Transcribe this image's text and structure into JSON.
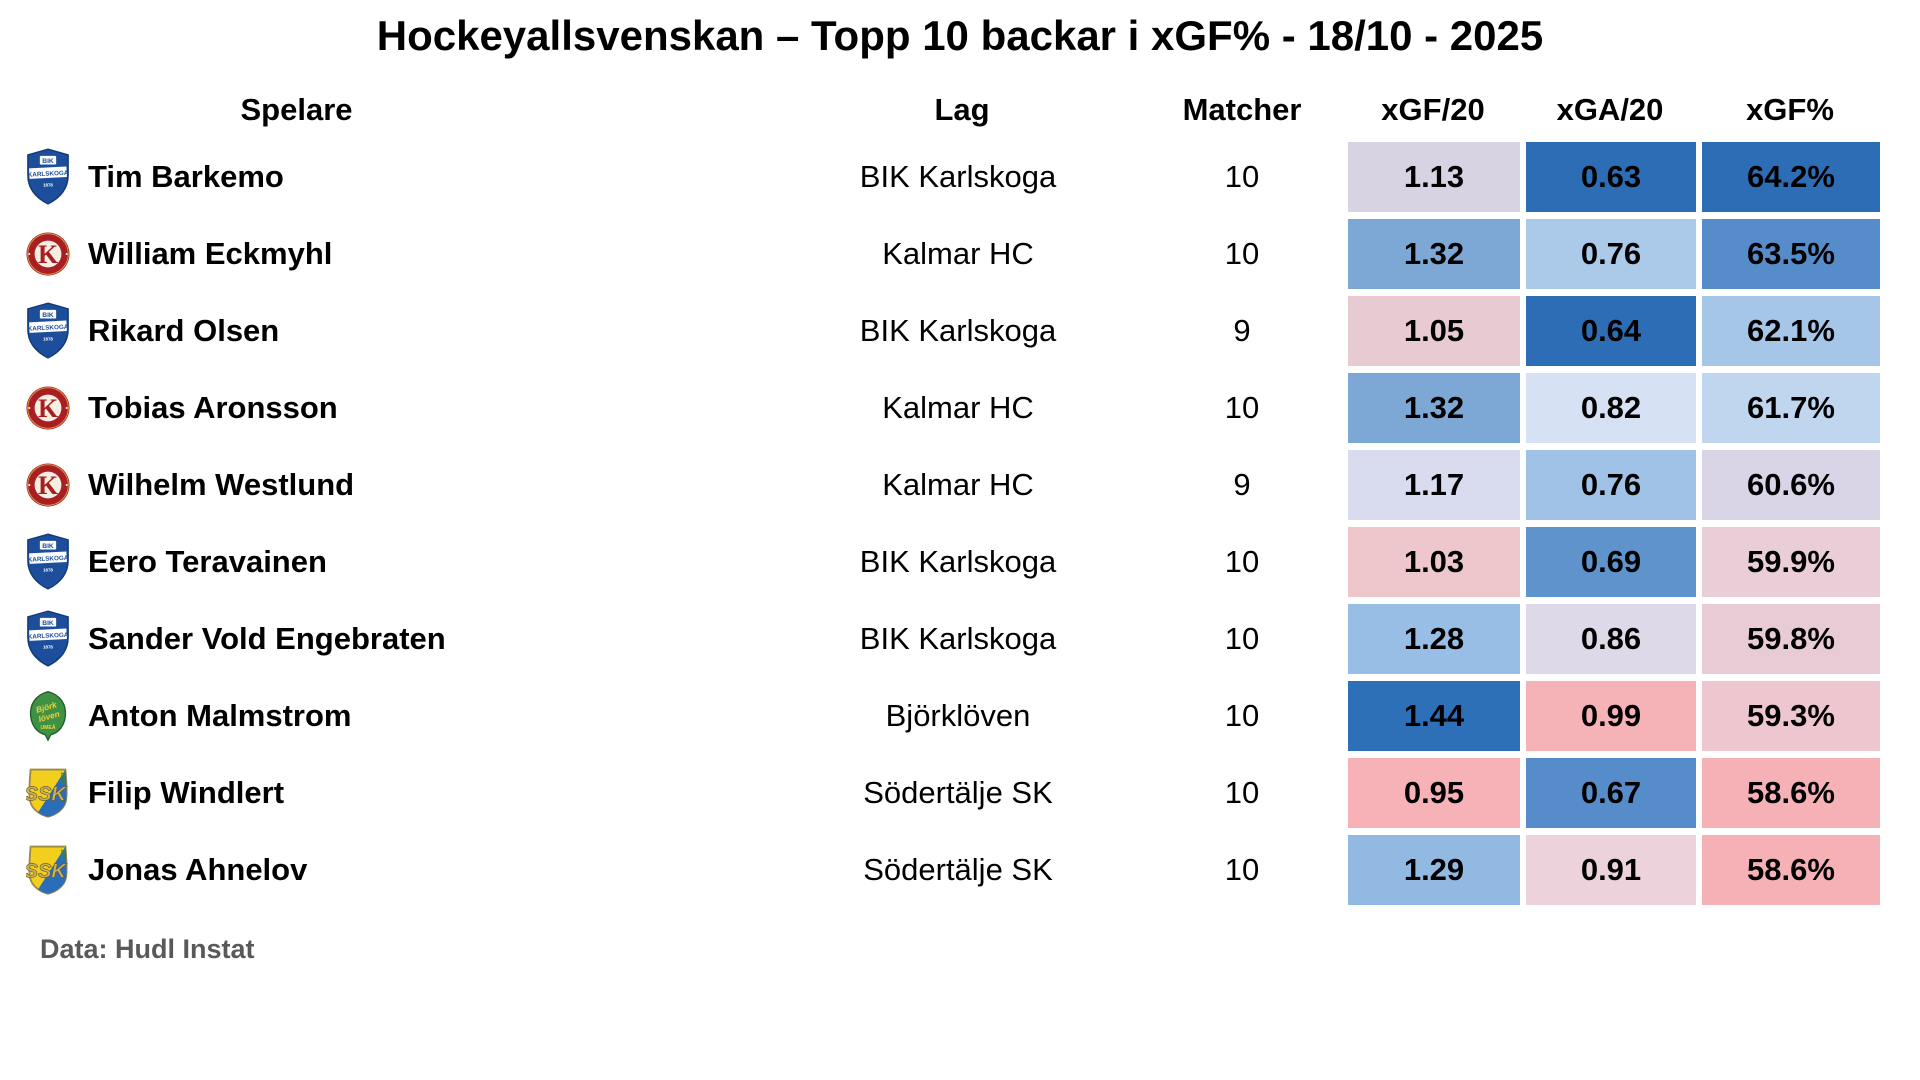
{
  "title": "Hockeyallsvenskan – Topp 10 backar i xGF% - 18/10 - 2025",
  "footer": "Data: Hudl Instat",
  "columns": [
    "Spelare",
    "Lag",
    "Matcher",
    "xGF/20",
    "xGA/20",
    "xGF%"
  ],
  "heatmap_legend": "diverging heatmap per column: blue = good, pink/red = bad",
  "logo_colors": {
    "bik": {
      "shield": "#1d4e9b",
      "outline": "#123a77",
      "band": "#ffffff"
    },
    "kalmar": {
      "ring": "#a81e22",
      "inner": "#f5efe2",
      "gold": "#d9a94e"
    },
    "bjorkloven": {
      "leaf": "#3f9143",
      "outline": "#1e5c24",
      "text": "#f2d23c"
    },
    "ssk": {
      "yellow": "#f2cf1c",
      "blue": "#2a6db8",
      "border": "#9c8a4a",
      "monogram": "#c9b45a",
      "year": "#3a8a3a"
    }
  },
  "rows": [
    {
      "player": "Tim Barkemo",
      "team": "BIK Karlskoga",
      "logo": "bik",
      "logo_icon": "bik-karlskoga-logo",
      "matches": "10",
      "xgf20": "1.13",
      "xga20": "0.63",
      "xgfpct": "64.2%",
      "colors": {
        "xgf20": "#d8d3e3",
        "xga20": "#2d6db5",
        "xgfpct": "#2d6db5"
      }
    },
    {
      "player": "William Eckmyhl",
      "team": "Kalmar HC",
      "logo": "kalmar",
      "logo_icon": "kalmar-hc-logo",
      "matches": "10",
      "xgf20": "1.32",
      "xga20": "0.76",
      "xgfpct": "63.5%",
      "colors": {
        "xgf20": "#7da8d6",
        "xga20": "#abc9e9",
        "xgfpct": "#568cc9"
      }
    },
    {
      "player": "Rikard Olsen",
      "team": "BIK Karlskoga",
      "logo": "bik",
      "logo_icon": "bik-karlskoga-logo",
      "matches": "9",
      "xgf20": "1.05",
      "xga20": "0.64",
      "xgfpct": "62.1%",
      "colors": {
        "xgf20": "#e7cad2",
        "xga20": "#2d6db5",
        "xgfpct": "#a6c6e8"
      }
    },
    {
      "player": "Tobias Aronsson",
      "team": "Kalmar HC",
      "logo": "kalmar",
      "logo_icon": "kalmar-hc-logo",
      "matches": "10",
      "xgf20": "1.32",
      "xga20": "0.82",
      "xgfpct": "61.7%",
      "colors": {
        "xgf20": "#7da8d6",
        "xga20": "#d6e1f3",
        "xgfpct": "#c0d6ef"
      }
    },
    {
      "player": "Wilhelm Westlund",
      "team": "Kalmar HC",
      "logo": "kalmar",
      "logo_icon": "kalmar-hc-logo",
      "matches": "9",
      "xgf20": "1.17",
      "xga20": "0.76",
      "xgfpct": "60.6%",
      "colors": {
        "xgf20": "#d8dcee",
        "xga20": "#9fc2e6",
        "xgfpct": "#d9d4e6"
      }
    },
    {
      "player": "Eero Teravainen",
      "team": "BIK Karlskoga",
      "logo": "bik",
      "logo_icon": "bik-karlskoga-logo",
      "matches": "10",
      "xgf20": "1.03",
      "xga20": "0.69",
      "xgfpct": "59.9%",
      "colors": {
        "xgf20": "#eec7cd",
        "xga20": "#5e93cc",
        "xgfpct": "#e9ced8"
      }
    },
    {
      "player": "Sander Vold Engebraten",
      "team": "BIK Karlskoga",
      "logo": "bik",
      "logo_icon": "bik-karlskoga-logo",
      "matches": "10",
      "xgf20": "1.28",
      "xga20": "0.86",
      "xgfpct": "59.8%",
      "colors": {
        "xgf20": "#99bee5",
        "xga20": "#ded9e9",
        "xgfpct": "#e8cbd4"
      }
    },
    {
      "player": "Anton Malmstrom",
      "team": "Björklöven",
      "logo": "bjorkloven",
      "logo_icon": "bjorkloven-logo",
      "matches": "10",
      "xgf20": "1.44",
      "xga20": "0.99",
      "xgfpct": "59.3%",
      "colors": {
        "xgf20": "#2e70b7",
        "xga20": "#f6b3b7",
        "xgfpct": "#edc6cf"
      }
    },
    {
      "player": "Filip Windlert",
      "team": "Södertälje SK",
      "logo": "ssk",
      "logo_icon": "sodertalje-sk-logo",
      "matches": "10",
      "xgf20": "0.95",
      "xga20": "0.67",
      "xgfpct": "58.6%",
      "colors": {
        "xgf20": "#f6b2b6",
        "xga20": "#568cc9",
        "xgfpct": "#f5b1b6"
      }
    },
    {
      "player": "Jonas Ahnelov",
      "team": "Södertälje SK",
      "logo": "ssk",
      "logo_icon": "sodertalje-sk-logo",
      "matches": "10",
      "xgf20": "1.29",
      "xga20": "0.91",
      "xgfpct": "58.6%",
      "colors": {
        "xgf20": "#92b9e2",
        "xga20": "#ebd2db",
        "xgfpct": "#f5b1b6"
      }
    }
  ],
  "chart_data": {
    "type": "table",
    "title": "Hockeyallsvenskan – Topp 10 backar i xGF% - 18/10 - 2025",
    "columns": [
      "Spelare",
      "Lag",
      "Matcher",
      "xGF/20",
      "xGA/20",
      "xGF%"
    ],
    "rows": [
      [
        "Tim Barkemo",
        "BIK Karlskoga",
        10,
        1.13,
        0.63,
        "64.2%"
      ],
      [
        "William Eckmyhl",
        "Kalmar HC",
        10,
        1.32,
        0.76,
        "63.5%"
      ],
      [
        "Rikard Olsen",
        "BIK Karlskoga",
        9,
        1.05,
        0.64,
        "62.1%"
      ],
      [
        "Tobias Aronsson",
        "Kalmar HC",
        10,
        1.32,
        0.82,
        "61.7%"
      ],
      [
        "Wilhelm Westlund",
        "Kalmar HC",
        9,
        1.17,
        0.76,
        "60.6%"
      ],
      [
        "Eero Teravainen",
        "BIK Karlskoga",
        10,
        1.03,
        0.69,
        "59.9%"
      ],
      [
        "Sander Vold Engebraten",
        "BIK Karlskoga",
        10,
        1.28,
        0.86,
        "59.8%"
      ],
      [
        "Anton Malmstrom",
        "Björklöven",
        10,
        1.44,
        0.99,
        "59.3%"
      ],
      [
        "Filip Windlert",
        "Södertälje SK",
        10,
        0.95,
        0.67,
        "58.6%"
      ],
      [
        "Jonas Ahnelov",
        "Södertälje SK",
        10,
        1.29,
        0.91,
        "58.6%"
      ]
    ],
    "color_encoding": "cells in xGF/20, xGA/20 and xGF% columns use a diverging blue (good) to pink (bad) heatmap",
    "source": "Data: Hudl Instat"
  }
}
